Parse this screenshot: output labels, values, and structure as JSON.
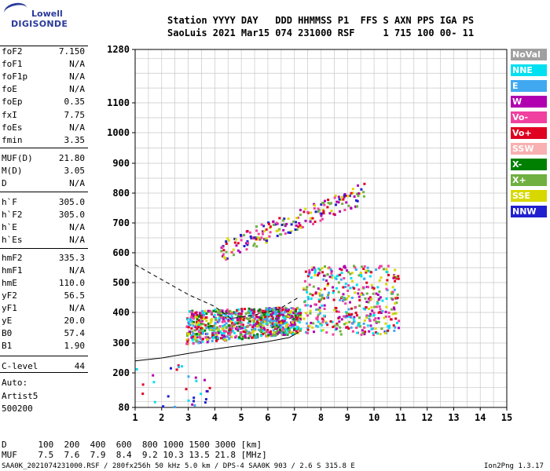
{
  "logo": {
    "top": "Lowell",
    "bottom": "DIGISONDE"
  },
  "header": {
    "line1": "Station YYYY DAY   DDD HHMMSS P1  FFS S AXN PPS IGA PS",
    "line2": "SaoLuis 2021 Mar15 074 231000 RSF     1 715 100 00- 11"
  },
  "params": [
    {
      "key": "foF2",
      "value": "7.150"
    },
    {
      "key": "foF1",
      "value": "N/A"
    },
    {
      "key": "foF1p",
      "value": "N/A"
    },
    {
      "key": "foE",
      "value": "N/A"
    },
    {
      "key": "foEp",
      "value": "0.35"
    },
    {
      "key": "fxI",
      "value": "7.75"
    },
    {
      "key": "foEs",
      "value": "N/A"
    },
    {
      "key": "fmin",
      "value": "3.35"
    },
    {
      "key": "MUF(D)",
      "value": "21.80"
    },
    {
      "key": "M(D)",
      "value": "3.05"
    },
    {
      "key": "D",
      "value": "N/A"
    },
    {
      "key": "h`F",
      "value": "305.0"
    },
    {
      "key": "h`F2",
      "value": "305.0"
    },
    {
      "key": "h`E",
      "value": "N/A"
    },
    {
      "key": "h`Es",
      "value": "N/A"
    },
    {
      "key": "hmF2",
      "value": "335.3"
    },
    {
      "key": "hmF1",
      "value": "N/A"
    },
    {
      "key": "hmE",
      "value": "110.0"
    },
    {
      "key": "yF2",
      "value": "56.5"
    },
    {
      "key": "yF1",
      "value": "N/A"
    },
    {
      "key": "yE",
      "value": "20.0"
    },
    {
      "key": "B0",
      "value": "57.4"
    },
    {
      "key": "B1",
      "value": "1.90"
    },
    {
      "key": "C-level",
      "value": "44"
    }
  ],
  "auto": {
    "line1": "Auto:",
    "line2": "Artist5",
    "line3": "500200"
  },
  "legend": [
    {
      "label": "NoVal",
      "color": "#a0a0a0"
    },
    {
      "label": "NNE",
      "color": "#00e0f0"
    },
    {
      "label": "E",
      "color": "#40a8f0"
    },
    {
      "label": "W",
      "color": "#b000b0"
    },
    {
      "label": "Vo-",
      "color": "#f040a0"
    },
    {
      "label": "Vo+",
      "color": "#e00020"
    },
    {
      "label": "SSW",
      "color": "#f8b0b0"
    },
    {
      "label": "X-",
      "color": "#008000"
    },
    {
      "label": "X+",
      "color": "#70b040"
    },
    {
      "label": "SSE",
      "color": "#d8d800"
    },
    {
      "label": "NNW",
      "color": "#2020d0"
    }
  ],
  "muf_table": {
    "d_label": "D",
    "d_values": "100  200  400  600  800 1000 1500 3000 [km]",
    "m_label": "MUF",
    "m_values": "7.5  7.6  7.9  8.4  9.2 10.3 13.5 21.8 [MHz]"
  },
  "footer": {
    "left": "SAA0K_2021074231000.RSF / 280fx256h 50 kHz 5.0 km / DPS-4 SAA0K 903 / 2.6 S 315.8 E",
    "right": "Ion2Png 1.3.17"
  },
  "chart_data": {
    "type": "scatter",
    "xlim": [
      1,
      15
    ],
    "ylim": [
      80,
      1280
    ],
    "xticks": [
      1,
      2,
      3,
      4,
      5,
      6,
      7,
      8,
      9,
      10,
      11,
      12,
      13,
      14,
      15
    ],
    "yticks": [
      80,
      200,
      300,
      400,
      500,
      600,
      700,
      800,
      900,
      1000,
      1100,
      1280
    ],
    "grid": true,
    "series": [
      {
        "name": "F2 trace (main echoes)",
        "x_range": [
          2.9,
          7.2
        ],
        "y_range": [
          290,
          420
        ]
      },
      {
        "name": "F2 spread echoes",
        "x_range": [
          7.3,
          10.9
        ],
        "y_range": [
          330,
          560
        ]
      },
      {
        "name": "Second hop echoes",
        "x_range": [
          4.2,
          9.6
        ],
        "y_range": [
          590,
          830
        ]
      },
      {
        "name": "Low-height echoes",
        "x_range": [
          1.0,
          3.8
        ],
        "y_range": [
          80,
          240
        ]
      }
    ],
    "profile_solid": [
      [
        1.0,
        240
      ],
      [
        2.0,
        250
      ],
      [
        3.0,
        265
      ],
      [
        4.0,
        280
      ],
      [
        5.0,
        292
      ],
      [
        6.0,
        305
      ],
      [
        6.8,
        318
      ],
      [
        7.15,
        335
      ]
    ],
    "profile_dashed": [
      [
        1.0,
        560
      ],
      [
        2.0,
        510
      ],
      [
        3.0,
        460
      ],
      [
        4.0,
        420
      ],
      [
        4.6,
        380
      ],
      [
        5.4,
        390
      ],
      [
        6.4,
        410
      ],
      [
        7.15,
        450
      ]
    ]
  }
}
